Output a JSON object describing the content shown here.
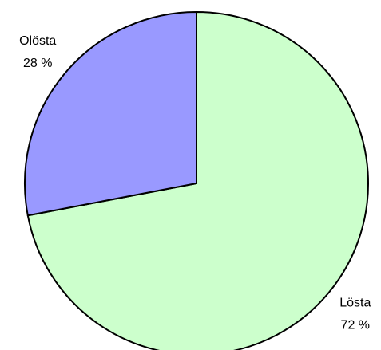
{
  "chart_data": {
    "type": "pie",
    "categories": [
      "Lösta",
      "Olösta"
    ],
    "values": [
      72,
      28
    ],
    "value_labels": [
      "72 %",
      "28 %"
    ],
    "colors": [
      "#ccffcc",
      "#9999ff"
    ]
  }
}
